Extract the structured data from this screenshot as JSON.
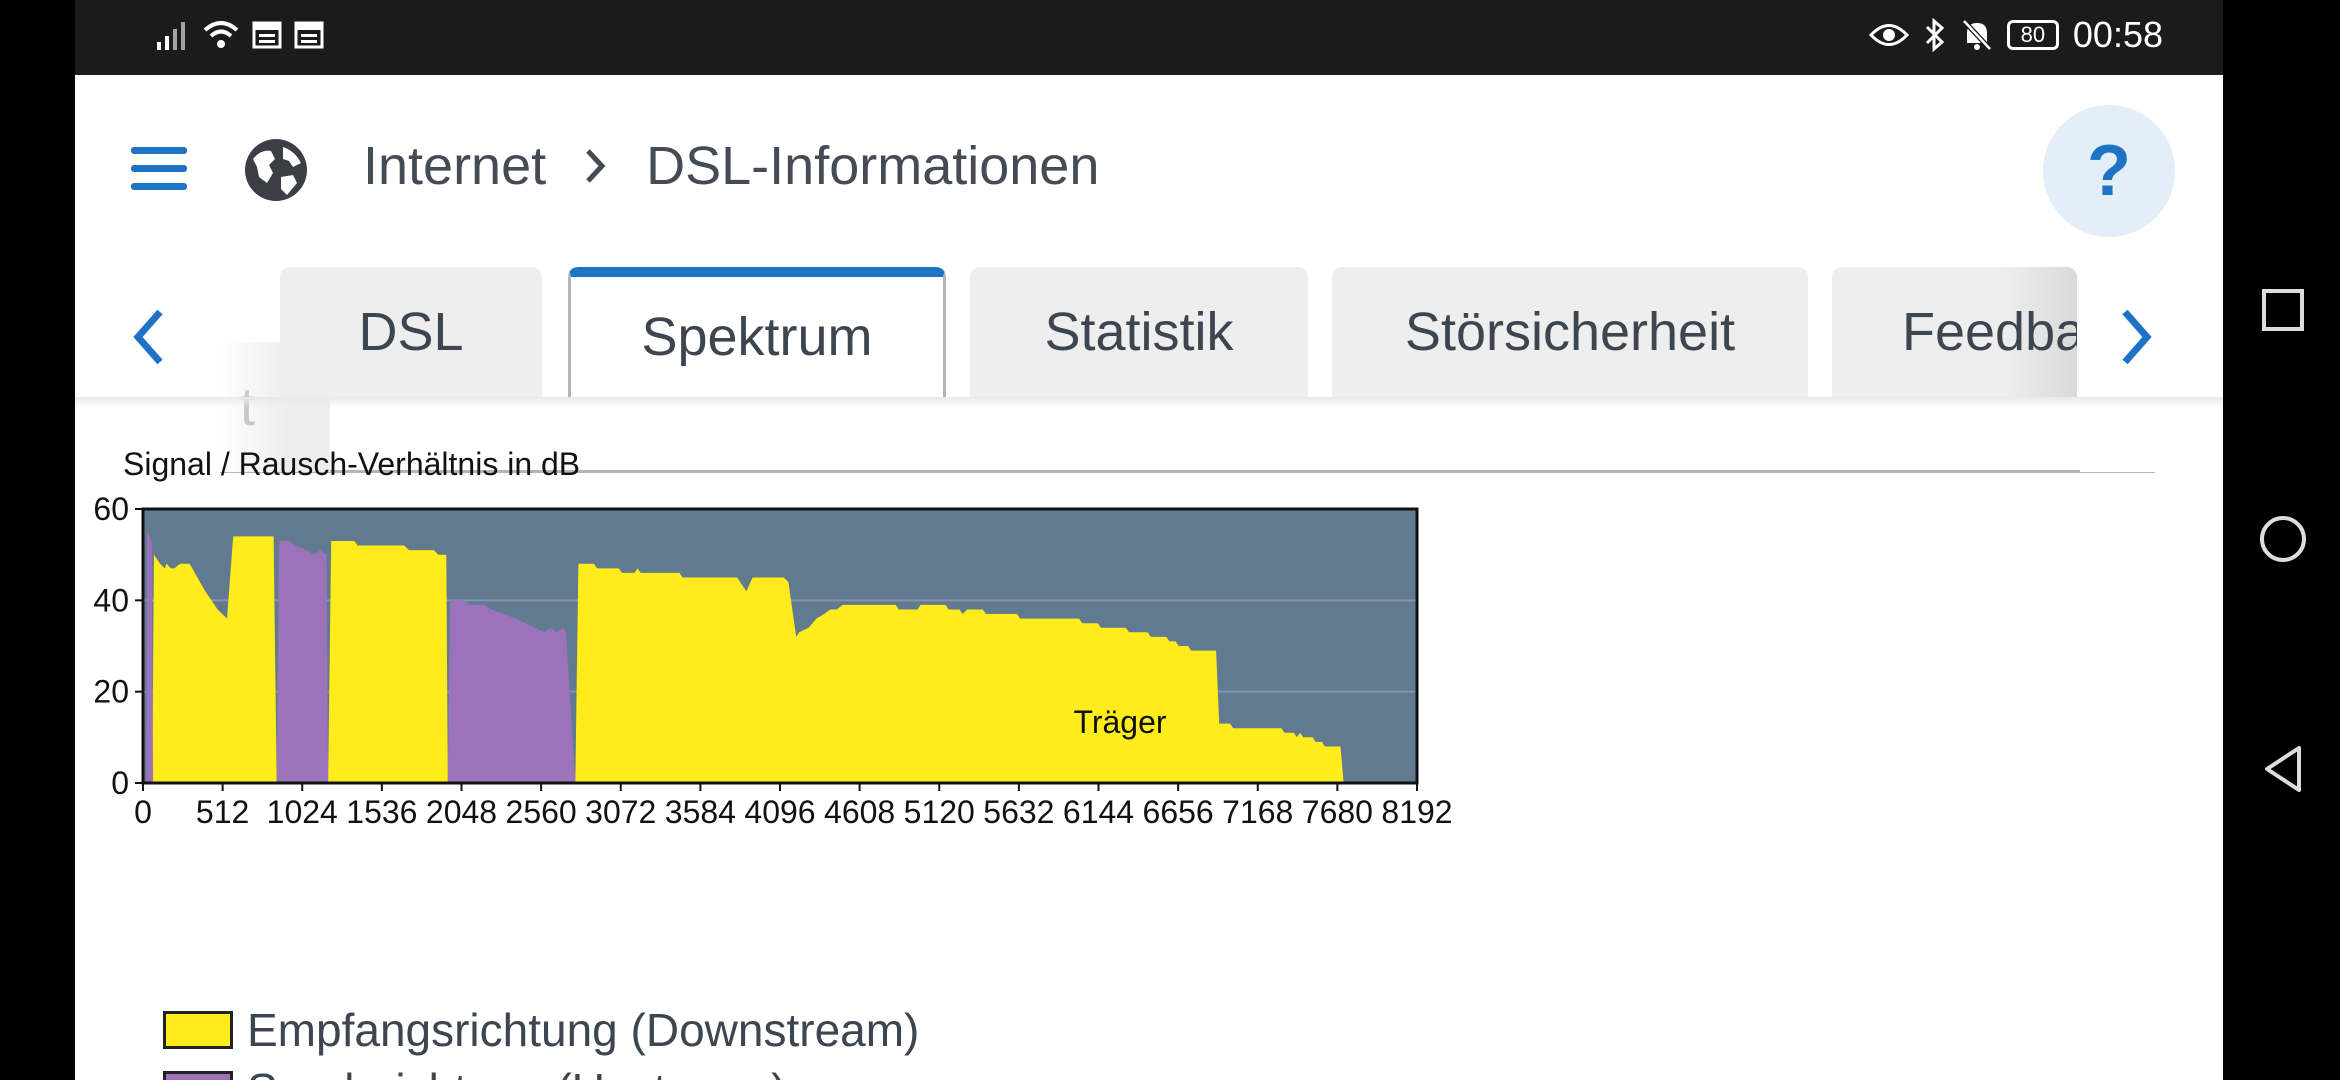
{
  "status_bar": {
    "time": "00:58",
    "battery": "80",
    "left_icons": [
      "signal-icon",
      "wifi-icon",
      "sim-card-icon",
      "sim-card-icon"
    ],
    "right_icons": [
      "eye-icon",
      "bluetooth-icon",
      "bell-muted-icon"
    ]
  },
  "header": {
    "breadcrumb": [
      "Internet",
      "DSL-Informationen"
    ],
    "help_label": "?"
  },
  "tabs": {
    "items": [
      {
        "label": "t"
      },
      {
        "label": "DSL"
      },
      {
        "label": "Spektrum",
        "active": true
      },
      {
        "label": "Statistik"
      },
      {
        "label": "Störsicherheit"
      },
      {
        "label": "Feedback"
      }
    ]
  },
  "chart_data": {
    "type": "area",
    "title": "Signal / Rausch-Verhältnis in dB",
    "xlabel": "Träger",
    "ylabel": "",
    "xlim": [
      0,
      8192
    ],
    "ylim": [
      0,
      60
    ],
    "xticks": [
      0,
      512,
      1024,
      1536,
      2048,
      2560,
      3072,
      3584,
      4096,
      4608,
      5120,
      5632,
      6144,
      6656,
      7168,
      7680,
      8192
    ],
    "yticks": [
      0,
      20,
      40,
      60
    ],
    "grid": "horizontal",
    "background_color": "#627a90",
    "colors": {
      "downstream": "#ffec1a",
      "upstream": "#9c72ba"
    },
    "series": [
      {
        "name": "Empfangsrichtung (Downstream)",
        "segments": [
          [
            [
              60,
              0
            ],
            [
              70,
              50
            ],
            [
              110,
              48
            ],
            [
              140,
              47
            ],
            [
              150,
              48
            ],
            [
              180,
              47
            ],
            [
              200,
              47
            ],
            [
              240,
              48
            ],
            [
              300,
              48
            ],
            [
              350,
              45
            ],
            [
              400,
              42
            ],
            [
              440,
              40
            ],
            [
              480,
              38
            ],
            [
              510,
              37
            ],
            [
              540,
              36
            ],
            [
              560,
              45
            ],
            [
              580,
              54
            ],
            [
              700,
              54
            ],
            [
              840,
              54
            ],
            [
              860,
              0
            ]
          ],
          [
            [
              1190,
              0
            ],
            [
              1210,
              53
            ],
            [
              1360,
              53
            ],
            [
              1380,
              52
            ],
            [
              1680,
              52
            ],
            [
              1710,
              51
            ],
            [
              1870,
              51
            ],
            [
              1900,
              50
            ],
            [
              1950,
              50
            ],
            [
              1960,
              0
            ]
          ],
          [
            [
              2780,
              0
            ],
            [
              2800,
              48
            ],
            [
              2900,
              48
            ],
            [
              2920,
              47
            ],
            [
              3060,
              47
            ],
            [
              3080,
              46
            ],
            [
              3160,
              46
            ],
            [
              3180,
              47
            ],
            [
              3200,
              46
            ],
            [
              3450,
              46
            ],
            [
              3470,
              45
            ],
            [
              3780,
              45
            ],
            [
              3820,
              45
            ],
            [
              3880,
              42
            ],
            [
              3920,
              45
            ],
            [
              4000,
              45
            ],
            [
              4120,
              45
            ],
            [
              4150,
              44
            ],
            [
              4200,
              32
            ],
            [
              4220,
              33
            ],
            [
              4280,
              34
            ],
            [
              4330,
              36
            ],
            [
              4380,
              37
            ],
            [
              4420,
              38
            ],
            [
              4460,
              38
            ],
            [
              4500,
              39
            ],
            [
              4840,
              39
            ],
            [
              4860,
              38
            ],
            [
              4980,
              38
            ],
            [
              5000,
              39
            ],
            [
              5160,
              39
            ],
            [
              5180,
              38
            ],
            [
              5250,
              38
            ],
            [
              5270,
              37
            ],
            [
              5300,
              38
            ],
            [
              5400,
              38
            ],
            [
              5420,
              37
            ],
            [
              5620,
              37
            ],
            [
              5640,
              36
            ],
            [
              6020,
              36
            ],
            [
              6040,
              35
            ],
            [
              6140,
              35
            ],
            [
              6160,
              34
            ],
            [
              6320,
              34
            ],
            [
              6340,
              33
            ],
            [
              6460,
              33
            ],
            [
              6480,
              32
            ],
            [
              6580,
              32
            ],
            [
              6600,
              31
            ],
            [
              6640,
              31
            ],
            [
              6660,
              30
            ],
            [
              6720,
              30
            ],
            [
              6740,
              29
            ],
            [
              6900,
              29
            ],
            [
              6920,
              13
            ],
            [
              6990,
              13
            ],
            [
              7010,
              12
            ],
            [
              7320,
              12
            ],
            [
              7340,
              11
            ],
            [
              7400,
              11
            ],
            [
              7420,
              10
            ],
            [
              7440,
              11
            ],
            [
              7460,
              10
            ],
            [
              7520,
              10
            ],
            [
              7540,
              9
            ],
            [
              7580,
              9
            ],
            [
              7600,
              8
            ],
            [
              7700,
              8
            ],
            [
              7720,
              0
            ]
          ]
        ]
      },
      {
        "name": "Senderichtung (Upstream)",
        "segments": [
          [
            [
              20,
              0
            ],
            [
              25,
              55
            ],
            [
              40,
              54
            ],
            [
              55,
              53
            ],
            [
              65,
              0
            ]
          ],
          [
            [
              860,
              0
            ],
            [
              875,
              53
            ],
            [
              940,
              53
            ],
            [
              980,
              52
            ],
            [
              1050,
              51
            ],
            [
              1100,
              50
            ],
            [
              1140,
              51
            ],
            [
              1180,
              50
            ],
            [
              1190,
              0
            ]
          ],
          [
            [
              1960,
              0
            ],
            [
              1975,
              40
            ],
            [
              2060,
              40
            ],
            [
              2100,
              39
            ],
            [
              2200,
              39
            ],
            [
              2240,
              38
            ],
            [
              2320,
              37
            ],
            [
              2400,
              36
            ],
            [
              2460,
              35
            ],
            [
              2520,
              34
            ],
            [
              2580,
              33
            ],
            [
              2620,
              34
            ],
            [
              2660,
              33
            ],
            [
              2700,
              34
            ],
            [
              2720,
              33
            ],
            [
              2780,
              0
            ]
          ]
        ]
      }
    ],
    "legend": [
      {
        "label": "Empfangsrichtung (Downstream)",
        "color": "#ffec1a"
      },
      {
        "label": "Senderichtung (Upstream)",
        "color": "#9c72ba"
      }
    ]
  }
}
